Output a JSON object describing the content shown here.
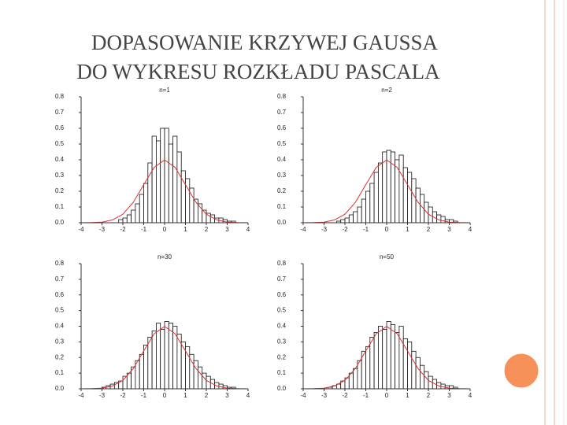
{
  "slide": {
    "title": [
      "DOPASOWANIE KRZYWEJ GAUSSA",
      "DO WYKRESU ROZKŁADU PASCALA"
    ]
  },
  "chart_data": [
    {
      "type": "histogram",
      "title": "n=1",
      "bins": [
        -4,
        -3.8,
        -3.6,
        -3.4,
        -3.2,
        -3,
        -2.8,
        -2.6,
        -2.4,
        -2.2,
        -2,
        -1.8,
        -1.6,
        -1.4,
        -1.2,
        -1,
        -0.8,
        -0.6,
        -0.4,
        -0.2,
        0,
        0.2,
        0.4,
        0.6,
        0.8,
        1,
        1.2,
        1.4,
        1.6,
        1.8,
        2,
        2.2,
        2.4,
        2.6,
        2.8,
        3,
        3.2,
        3.4,
        3.6,
        3.8,
        4
      ],
      "values": [
        0,
        0,
        0,
        0,
        0,
        0,
        0,
        0,
        0,
        0.02,
        0.03,
        0.05,
        0.08,
        0.12,
        0.18,
        0.25,
        0.38,
        0.55,
        0.52,
        0.6,
        0.6,
        0.5,
        0.55,
        0.45,
        0.33,
        0.28,
        0.22,
        0.15,
        0.12,
        0.08,
        0.06,
        0.05,
        0.03,
        0.03,
        0.02,
        0.01,
        0.01,
        0,
        0,
        0
      ],
      "color": "#ffffff",
      "curve": {
        "x": [
          -4,
          -3.5,
          -3,
          -2.5,
          -2,
          -1.5,
          -1,
          -0.5,
          0,
          0.5,
          1,
          1.5,
          2,
          2.5,
          3,
          3.5,
          4
        ],
        "values": [
          0,
          0.001,
          0.004,
          0.018,
          0.054,
          0.13,
          0.242,
          0.352,
          0.399,
          0.352,
          0.242,
          0.13,
          0.054,
          0.018,
          0.004,
          0.001,
          0
        ],
        "color": "#e03030"
      },
      "xlim": [
        -4,
        4
      ],
      "xticks": [
        -4,
        -3,
        -2,
        -1,
        0,
        1,
        2,
        3,
        4
      ],
      "ylim": [
        0,
        0.8
      ],
      "yticks": [
        {
          "value": 0,
          "label": "0.0"
        },
        0.1,
        0.2,
        0.3,
        0.4,
        0.5,
        0.6,
        0.7,
        0.8
      ]
    },
    {
      "type": "histogram",
      "title": "n=2",
      "bins": [
        -4,
        -3.8,
        -3.6,
        -3.4,
        -3.2,
        -3,
        -2.8,
        -2.6,
        -2.4,
        -2.2,
        -2,
        -1.8,
        -1.6,
        -1.4,
        -1.2,
        -1,
        -0.8,
        -0.6,
        -0.4,
        -0.2,
        0,
        0.2,
        0.4,
        0.6,
        0.8,
        1,
        1.2,
        1.4,
        1.6,
        1.8,
        2,
        2.2,
        2.4,
        2.6,
        2.8,
        3,
        3.2,
        3.4,
        3.6,
        3.8,
        4
      ],
      "values": [
        0,
        0,
        0,
        0,
        0,
        0,
        0,
        0,
        0.01,
        0.02,
        0.03,
        0.05,
        0.07,
        0.1,
        0.15,
        0.2,
        0.25,
        0.32,
        0.38,
        0.45,
        0.46,
        0.45,
        0.4,
        0.43,
        0.35,
        0.32,
        0.28,
        0.22,
        0.18,
        0.13,
        0.1,
        0.07,
        0.05,
        0.04,
        0.02,
        0.02,
        0.01,
        0,
        0,
        0
      ],
      "color": "#ffffff",
      "curve": {
        "x": [
          -4,
          -3.5,
          -3,
          -2.5,
          -2,
          -1.5,
          -1,
          -0.5,
          0,
          0.5,
          1,
          1.5,
          2,
          2.5,
          3,
          3.5,
          4
        ],
        "values": [
          0,
          0.001,
          0.004,
          0.018,
          0.054,
          0.13,
          0.242,
          0.352,
          0.399,
          0.352,
          0.242,
          0.13,
          0.054,
          0.018,
          0.004,
          0.001,
          0
        ],
        "color": "#e03030"
      },
      "xlim": [
        -4,
        4
      ],
      "xticks": [
        -4,
        -3,
        -2,
        -1,
        0,
        1,
        2,
        3,
        4
      ],
      "ylim": [
        0,
        0.8
      ],
      "yticks": [
        {
          "value": 0,
          "label": "0.0"
        },
        0.1,
        0.2,
        0.3,
        0.4,
        0.5,
        0.6,
        0.7,
        0.8
      ]
    },
    {
      "type": "histogram",
      "title": "n=30",
      "bins": [
        -4,
        -3.8,
        -3.6,
        -3.4,
        -3.2,
        -3,
        -2.8,
        -2.6,
        -2.4,
        -2.2,
        -2,
        -1.8,
        -1.6,
        -1.4,
        -1.2,
        -1,
        -0.8,
        -0.6,
        -0.4,
        -0.2,
        0,
        0.2,
        0.4,
        0.6,
        0.8,
        1,
        1.2,
        1.4,
        1.6,
        1.8,
        2,
        2.2,
        2.4,
        2.6,
        2.8,
        3,
        3.2,
        3.4,
        3.6,
        3.8,
        4
      ],
      "values": [
        0,
        0,
        0,
        0,
        0,
        0.01,
        0.02,
        0.03,
        0.04,
        0.05,
        0.08,
        0.1,
        0.14,
        0.18,
        0.22,
        0.28,
        0.33,
        0.37,
        0.42,
        0.38,
        0.43,
        0.42,
        0.4,
        0.35,
        0.3,
        0.27,
        0.22,
        0.18,
        0.14,
        0.1,
        0.08,
        0.06,
        0.04,
        0.03,
        0.02,
        0.01,
        0.01,
        0,
        0,
        0
      ],
      "color": "#ffffff",
      "curve": {
        "x": [
          -4,
          -3.5,
          -3,
          -2.5,
          -2,
          -1.5,
          -1,
          -0.5,
          0,
          0.5,
          1,
          1.5,
          2,
          2.5,
          3,
          3.5,
          4
        ],
        "values": [
          0,
          0.001,
          0.004,
          0.018,
          0.054,
          0.13,
          0.242,
          0.352,
          0.399,
          0.352,
          0.242,
          0.13,
          0.054,
          0.018,
          0.004,
          0.001,
          0
        ],
        "color": "#e03030"
      },
      "xlim": [
        -4,
        4
      ],
      "xticks": [
        -4,
        -3,
        -2,
        -1,
        0,
        1,
        2,
        3,
        4
      ],
      "ylim": [
        0,
        0.8
      ],
      "yticks": [
        {
          "value": 0,
          "label": "0.0"
        },
        0.1,
        0.2,
        0.3,
        0.4,
        0.5,
        0.6,
        0.7,
        0.8
      ]
    },
    {
      "type": "histogram",
      "title": "n=50",
      "bins": [
        -4,
        -3.8,
        -3.6,
        -3.4,
        -3.2,
        -3,
        -2.8,
        -2.6,
        -2.4,
        -2.2,
        -2,
        -1.8,
        -1.6,
        -1.4,
        -1.2,
        -1,
        -0.8,
        -0.6,
        -0.4,
        -0.2,
        0,
        0.2,
        0.4,
        0.6,
        0.8,
        1,
        1.2,
        1.4,
        1.6,
        1.8,
        2,
        2.2,
        2.4,
        2.6,
        2.8,
        3,
        3.2,
        3.4,
        3.6,
        3.8,
        4
      ],
      "values": [
        0,
        0,
        0,
        0,
        0,
        0,
        0.01,
        0.02,
        0.03,
        0.05,
        0.07,
        0.1,
        0.13,
        0.18,
        0.24,
        0.27,
        0.33,
        0.36,
        0.4,
        0.38,
        0.43,
        0.41,
        0.36,
        0.4,
        0.32,
        0.3,
        0.24,
        0.2,
        0.15,
        0.11,
        0.08,
        0.06,
        0.04,
        0.03,
        0.02,
        0.02,
        0.01,
        0,
        0,
        0
      ],
      "color": "#ffffff",
      "curve": {
        "x": [
          -4,
          -3.5,
          -3,
          -2.5,
          -2,
          -1.5,
          -1,
          -0.5,
          0,
          0.5,
          1,
          1.5,
          2,
          2.5,
          3,
          3.5,
          4
        ],
        "values": [
          0,
          0.001,
          0.004,
          0.018,
          0.054,
          0.13,
          0.242,
          0.352,
          0.399,
          0.352,
          0.242,
          0.13,
          0.054,
          0.018,
          0.004,
          0.001,
          0
        ],
        "color": "#e03030"
      },
      "xlim": [
        -4,
        4
      ],
      "xticks": [
        -4,
        -3,
        -2,
        -1,
        0,
        1,
        2,
        3,
        4
      ],
      "ylim": [
        0,
        0.8
      ],
      "yticks": [
        {
          "value": 0,
          "label": "0.0"
        },
        0.1,
        0.2,
        0.3,
        0.4,
        0.5,
        0.6,
        0.7,
        0.8
      ]
    }
  ]
}
